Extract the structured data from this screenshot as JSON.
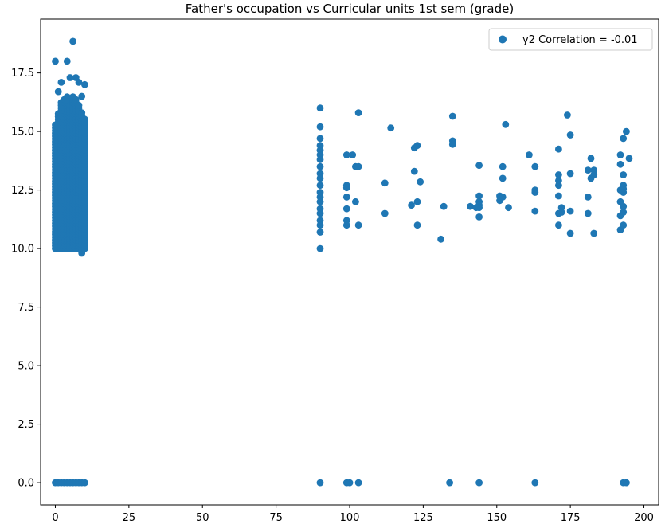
{
  "chart_data": {
    "type": "scatter",
    "title": "Father's occupation vs Curricular units 1st sem (grade)",
    "xlabel": "",
    "ylabel": "",
    "xlim": [
      -5,
      205
    ],
    "ylim": [
      -0.95,
      19.8
    ],
    "xticks": [
      0,
      25,
      50,
      75,
      100,
      125,
      150,
      175,
      200
    ],
    "xtick_labels": [
      "0",
      "25",
      "50",
      "75",
      "100",
      "125",
      "150",
      "175",
      "200"
    ],
    "yticks": [
      0.0,
      2.5,
      5.0,
      7.5,
      10.0,
      12.5,
      15.0,
      17.5
    ],
    "ytick_labels": [
      "0.0",
      "2.5",
      "5.0",
      "7.5",
      "10.0",
      "12.5",
      "15.0",
      "17.5"
    ],
    "grid": false,
    "legend_position": "top-right",
    "color": "#1f77b4",
    "series": [
      {
        "name": "y2 Correlation = -0.01",
        "points": [
          [
            0,
            18.0
          ],
          [
            4,
            18.0
          ],
          [
            6,
            18.85
          ],
          [
            5,
            17.3
          ],
          [
            7,
            17.3
          ],
          [
            2,
            17.1
          ],
          [
            8,
            17.1
          ],
          [
            10,
            17.0
          ],
          [
            1,
            16.7
          ],
          [
            9,
            16.5
          ],
          [
            90,
            16.0
          ],
          [
            90,
            15.2
          ],
          [
            90,
            14.7
          ],
          [
            90,
            14.4
          ],
          [
            90,
            14.2
          ],
          [
            90,
            14.0
          ],
          [
            90,
            13.8
          ],
          [
            90,
            13.5
          ],
          [
            90,
            13.2
          ],
          [
            90,
            13.0
          ],
          [
            90,
            12.7
          ],
          [
            90,
            12.4
          ],
          [
            90,
            12.2
          ],
          [
            90,
            12.0
          ],
          [
            90,
            11.7
          ],
          [
            90,
            11.5
          ],
          [
            90,
            11.2
          ],
          [
            90,
            11.0
          ],
          [
            90,
            10.7
          ],
          [
            90,
            10.0
          ],
          [
            99,
            14.0
          ],
          [
            99,
            12.7
          ],
          [
            99,
            12.6
          ],
          [
            99,
            12.2
          ],
          [
            99,
            11.7
          ],
          [
            99,
            11.2
          ],
          [
            99,
            11.0
          ],
          [
            101,
            14.0
          ],
          [
            102,
            13.5
          ],
          [
            102,
            12.0
          ],
          [
            103,
            15.8
          ],
          [
            103,
            13.5
          ],
          [
            103,
            11.0
          ],
          [
            112,
            12.8
          ],
          [
            112,
            11.5
          ],
          [
            114,
            15.15
          ],
          [
            121,
            11.85
          ],
          [
            122,
            14.3
          ],
          [
            122,
            13.3
          ],
          [
            123,
            14.4
          ],
          [
            123,
            12.0
          ],
          [
            123,
            11.0
          ],
          [
            124,
            12.85
          ],
          [
            131,
            10.4
          ],
          [
            132,
            11.8
          ],
          [
            135,
            15.65
          ],
          [
            135,
            14.6
          ],
          [
            135,
            14.45
          ],
          [
            141,
            11.8
          ],
          [
            143,
            11.75
          ],
          [
            144,
            13.55
          ],
          [
            144,
            12.25
          ],
          [
            144,
            12.0
          ],
          [
            144,
            11.85
          ],
          [
            144,
            11.75
          ],
          [
            144,
            11.35
          ],
          [
            151,
            12.25
          ],
          [
            151,
            12.05
          ],
          [
            152,
            13.5
          ],
          [
            152,
            13.0
          ],
          [
            152,
            12.2
          ],
          [
            153,
            15.3
          ],
          [
            154,
            11.75
          ],
          [
            161,
            14.0
          ],
          [
            163,
            13.5
          ],
          [
            163,
            12.5
          ],
          [
            163,
            12.4
          ],
          [
            163,
            11.6
          ],
          [
            171,
            14.25
          ],
          [
            171,
            13.15
          ],
          [
            171,
            12.9
          ],
          [
            171,
            12.7
          ],
          [
            171,
            12.25
          ],
          [
            171,
            11.5
          ],
          [
            171,
            11.0
          ],
          [
            172,
            11.75
          ],
          [
            172,
            11.55
          ],
          [
            174,
            15.7
          ],
          [
            175,
            14.85
          ],
          [
            175,
            13.2
          ],
          [
            175,
            11.6
          ],
          [
            175,
            10.65
          ],
          [
            181,
            13.35
          ],
          [
            181,
            12.2
          ],
          [
            181,
            11.5
          ],
          [
            182,
            13.85
          ],
          [
            182,
            13.0
          ],
          [
            183,
            13.35
          ],
          [
            183,
            13.15
          ],
          [
            183,
            10.65
          ],
          [
            192,
            14.0
          ],
          [
            192,
            13.6
          ],
          [
            192,
            12.5
          ],
          [
            192,
            12.0
          ],
          [
            192,
            11.4
          ],
          [
            192,
            10.8
          ],
          [
            193,
            14.7
          ],
          [
            193,
            13.15
          ],
          [
            193,
            12.7
          ],
          [
            193,
            12.55
          ],
          [
            193,
            12.4
          ],
          [
            193,
            11.8
          ],
          [
            193,
            11.55
          ],
          [
            193,
            11.0
          ],
          [
            194,
            15.0
          ],
          [
            195,
            13.85
          ],
          [
            0,
            0
          ],
          [
            1,
            0
          ],
          [
            2,
            0
          ],
          [
            3,
            0
          ],
          [
            4,
            0
          ],
          [
            5,
            0
          ],
          [
            6,
            0
          ],
          [
            7,
            0
          ],
          [
            8,
            0
          ],
          [
            9,
            0
          ],
          [
            10,
            0
          ],
          [
            90,
            0
          ],
          [
            99,
            0
          ],
          [
            100,
            0
          ],
          [
            103,
            0
          ],
          [
            134,
            0
          ],
          [
            144,
            0
          ],
          [
            163,
            0
          ],
          [
            193,
            0
          ],
          [
            194,
            0
          ]
        ],
        "dense_columns": [
          {
            "x": 0,
            "y_min": 10.0,
            "y_max": 15.3
          },
          {
            "x": 1,
            "y_min": 10.0,
            "y_max": 15.8
          },
          {
            "x": 2,
            "y_min": 10.0,
            "y_max": 16.3
          },
          {
            "x": 3,
            "y_min": 10.0,
            "y_max": 16.4
          },
          {
            "x": 4,
            "y_min": 10.0,
            "y_max": 16.5
          },
          {
            "x": 5,
            "y_min": 10.0,
            "y_max": 16.2
          },
          {
            "x": 6,
            "y_min": 10.0,
            "y_max": 16.5
          },
          {
            "x": 7,
            "y_min": 10.0,
            "y_max": 16.4
          },
          {
            "x": 8,
            "y_min": 10.0,
            "y_max": 16.2
          },
          {
            "x": 9,
            "y_min": 9.8,
            "y_max": 15.8
          },
          {
            "x": 10,
            "y_min": 10.0,
            "y_max": 15.6
          }
        ]
      }
    ]
  }
}
